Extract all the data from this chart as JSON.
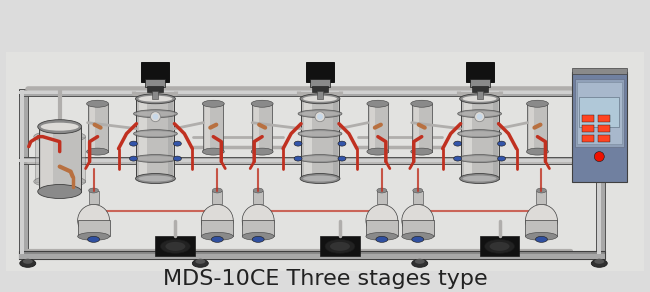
{
  "background_color": "#dcdcdc",
  "caption": "MDS-10CE Three stages type",
  "caption_color": "#222222",
  "caption_fontsize": 16,
  "fig_width": 6.5,
  "fig_height": 2.92,
  "dpi": 100,
  "steel": "#c0bfbd",
  "steel_light": "#dddbd8",
  "steel_dark": "#8a8a8a",
  "steel_bright": "#e8e6e2",
  "pipe_silver": "#b0aeac",
  "red_tube": "#c03020",
  "copper": "#b87040",
  "black": "#1a1a1a",
  "dark": "#404040",
  "frame_silver": "#a8a8a8",
  "frame_bright": "#d0d0d0",
  "control_panel": "#8090a0",
  "blue_valve": "#3060a0",
  "floor_color": "#c0c0b8",
  "wheel_dark": "#303030",
  "bg_gray": "#e2e2e0"
}
